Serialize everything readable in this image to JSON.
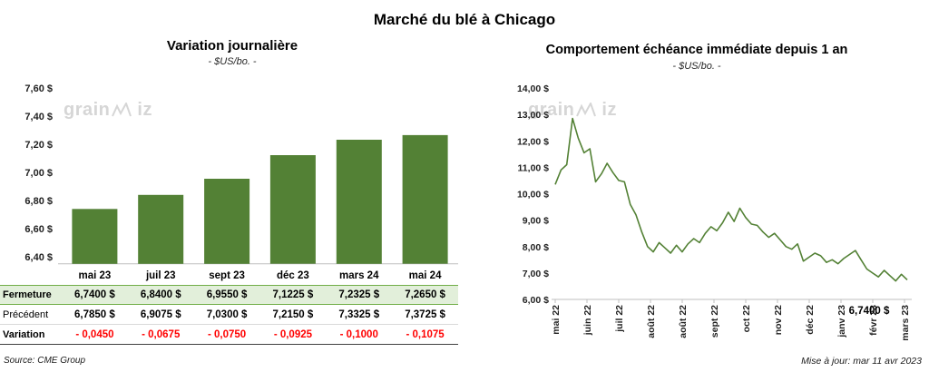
{
  "header": {
    "title": "Marché du blé à Chicago"
  },
  "footer": {
    "source": "Source: CME Group",
    "updated": "Mise à jour: mar 11 avr 2023"
  },
  "watermark": {
    "left": "grain",
    "right": "iz"
  },
  "colors": {
    "green": "#538135",
    "light_green_bg": "#e2efda",
    "green_border": "#70ad47",
    "red": "#ff0000",
    "axis_gray": "#bfbfbf",
    "watermark": "#d6d6d6"
  },
  "chart_data": [
    {
      "type": "bar",
      "title": "Variation  journalière",
      "subtitle": "- $US/bo. -",
      "categories": [
        "mai 23",
        "juil 23",
        "sept 23",
        "déc 23",
        "mars 24",
        "mai 24"
      ],
      "values": [
        6.74,
        6.84,
        6.955,
        7.1225,
        7.2325,
        7.265
      ],
      "ylim": [
        6.35,
        7.7
      ],
      "yticks": [
        6.4,
        6.6,
        6.8,
        7.0,
        7.2,
        7.4,
        7.6
      ],
      "ytick_labels": [
        "6,40 $",
        "6,60 $",
        "6,80 $",
        "7,00 $",
        "7,20 $",
        "7,40 $",
        "7,60 $"
      ],
      "grid": false,
      "legend": "none"
    },
    {
      "type": "line",
      "title": "Comportement  échéance immédiate depuis 1 an",
      "subtitle": "- $US/bo. -",
      "x_labels": [
        "mai 22",
        "juin 22",
        "juil 22",
        "août 22",
        "août 22",
        "sept 22",
        "oct 22",
        "nov 22",
        "déc 22",
        "janv 23",
        "févr 23",
        "mars 23"
      ],
      "values": [
        10.35,
        10.9,
        11.1,
        12.85,
        12.1,
        11.55,
        11.7,
        10.45,
        10.75,
        11.15,
        10.8,
        10.5,
        10.45,
        9.6,
        9.2,
        8.55,
        8.0,
        7.8,
        8.15,
        7.95,
        7.75,
        8.05,
        7.8,
        8.1,
        8.3,
        8.15,
        8.5,
        8.75,
        8.6,
        8.9,
        9.3,
        8.95,
        9.45,
        9.1,
        8.85,
        8.8,
        8.55,
        8.35,
        8.5,
        8.25,
        8.0,
        7.9,
        8.1,
        7.45,
        7.6,
        7.75,
        7.65,
        7.4,
        7.5,
        7.35,
        7.55,
        7.7,
        7.85,
        7.5,
        7.15,
        7.0,
        6.85,
        7.1,
        6.9,
        6.7,
        6.95,
        6.74
      ],
      "ylim": [
        6.0,
        14.0
      ],
      "yticks": [
        6,
        7,
        8,
        9,
        10,
        11,
        12,
        13,
        14
      ],
      "ytick_labels": [
        "6,00 $",
        "7,00 $",
        "8,00 $",
        "9,00 $",
        "10,00 $",
        "11,00 $",
        "12,00 $",
        "13,00 $",
        "14,00 $"
      ],
      "end_label": "6,7400 $",
      "grid": false,
      "legend": "none"
    }
  ],
  "table": {
    "rows": [
      {
        "label": "Fermeture",
        "style": "close",
        "values": [
          "6,7400  $",
          "6,8400  $",
          "6,9550  $",
          "7,1225  $",
          "7,2325  $",
          "7,2650  $"
        ]
      },
      {
        "label": "Précédent",
        "style": "previous",
        "values": [
          "6,7850  $",
          "6,9075  $",
          "7,0300  $",
          "7,2150  $",
          "7,3325  $",
          "7,3725  $"
        ]
      },
      {
        "label": "Variation",
        "style": "variation",
        "values": [
          "- 0,0450",
          "- 0,0675",
          "- 0,0750",
          "- 0,0925",
          "- 0,1000",
          "- 0,1075"
        ]
      }
    ]
  }
}
